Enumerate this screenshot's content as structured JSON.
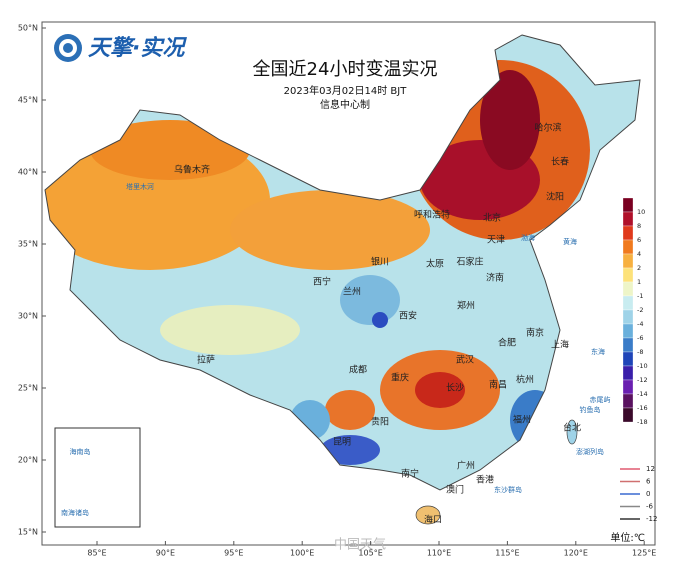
{
  "header": {
    "logo": "天擎·实况",
    "title": "全国近24小时变温实况",
    "subtitle": "2023年03月02日14时 BJT",
    "maker": "信息中心制"
  },
  "map": {
    "lat_ticks": [
      {
        "value": 50,
        "label": "50°N"
      },
      {
        "value": 45,
        "label": "45°N"
      },
      {
        "value": 40,
        "label": "40°N"
      },
      {
        "value": 35,
        "label": "35°N"
      },
      {
        "value": 30,
        "label": "30°N"
      },
      {
        "value": 25,
        "label": "25°N"
      },
      {
        "value": 20,
        "label": "20°N"
      },
      {
        "value": 15,
        "label": "15°N"
      }
    ],
    "lon_ticks": [
      {
        "value": 85,
        "label": "85°E"
      },
      {
        "value": 90,
        "label": "90°E"
      },
      {
        "value": 95,
        "label": "95°E"
      },
      {
        "value": 100,
        "label": "100°E"
      },
      {
        "value": 105,
        "label": "105°E"
      },
      {
        "value": 110,
        "label": "110°E"
      },
      {
        "value": 115,
        "label": "115°E"
      },
      {
        "value": 120,
        "label": "120°E"
      },
      {
        "value": 125,
        "label": "125°E"
      }
    ],
    "labels": [
      "乌鲁木齐",
      "哈尔滨",
      "长春",
      "沈阳",
      "呼和浩特",
      "北京",
      "天津",
      "银川",
      "太原",
      "石家庄",
      "济南",
      "西宁",
      "兰州",
      "郑州",
      "西安",
      "拉萨",
      "南京",
      "合肥",
      "上海",
      "杭州",
      "成都",
      "武汉",
      "重庆",
      "长沙",
      "南昌",
      "贵阳",
      "福州",
      "台北",
      "昆明",
      "南宁",
      "广州",
      "香港",
      "澳门",
      "海口",
      "黄海",
      "东海",
      "渤海",
      "塔里木河",
      "赤尾屿",
      "钓鱼岛",
      "澎湖列岛",
      "东沙群岛",
      "海南岛",
      "南海诸岛"
    ],
    "watermark": "中国天气"
  },
  "legend": {
    "levels": [
      {
        "value": 10,
        "color": "#7a0021"
      },
      {
        "value": 8,
        "color": "#b0102a"
      },
      {
        "value": 6,
        "color": "#e03a1c"
      },
      {
        "value": 4,
        "color": "#f07a1e"
      },
      {
        "value": 2,
        "color": "#f7b040"
      },
      {
        "value": 1,
        "color": "#fde27a"
      },
      {
        "value": -1,
        "color": "#eef5c8"
      },
      {
        "value": -2,
        "color": "#c8ecf0"
      },
      {
        "value": -4,
        "color": "#9fd3e8"
      },
      {
        "value": -6,
        "color": "#6ab0dc"
      },
      {
        "value": -8,
        "color": "#3a7cc8"
      },
      {
        "value": -10,
        "color": "#1f45b8"
      },
      {
        "value": -12,
        "color": "#3a1faa"
      },
      {
        "value": -14,
        "color": "#6a1fb0"
      },
      {
        "value": -16,
        "color": "#5a1260"
      },
      {
        "value": -18,
        "color": "#3a0a2a"
      }
    ],
    "contours": [
      {
        "value": 12,
        "color": "#e05a70"
      },
      {
        "value": 6,
        "color": "#d07070"
      },
      {
        "value": 0,
        "color": "#3a6ad0"
      },
      {
        "value": -6,
        "color": "#888888"
      },
      {
        "value": -12,
        "color": "#333333"
      }
    ],
    "unit": "单位:℃"
  }
}
